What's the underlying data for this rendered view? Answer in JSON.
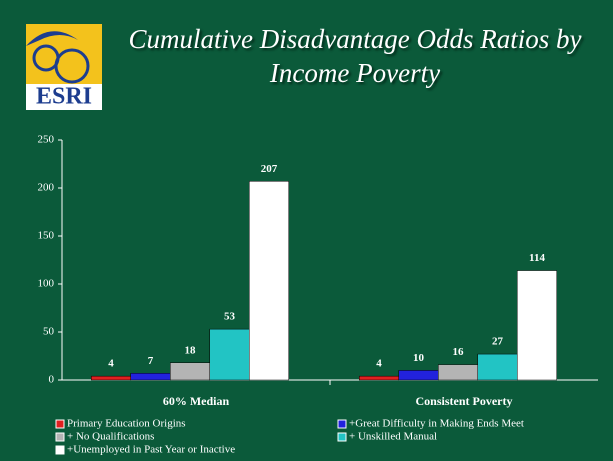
{
  "logo_text": "ESRI",
  "chart_data": {
    "type": "bar",
    "title": "Cumulative Disadvantage Odds Ratios by Income Poverty",
    "categories": [
      "60% Median",
      "Consistent Poverty"
    ],
    "series": [
      {
        "name": "Primary Education Origins",
        "color": "#e02020",
        "values": [
          4,
          4
        ]
      },
      {
        "name": "+Great Difficulty in Making Ends Meet",
        "color": "#2222dd",
        "values": [
          7,
          10
        ]
      },
      {
        "name": "+ No Qualifications",
        "color": "#b4b4b4",
        "values": [
          18,
          16
        ]
      },
      {
        "name": "+ Unskilled Manual",
        "color": "#22c4c4",
        "values": [
          53,
          27
        ]
      },
      {
        "name": "+Unemployed in Past Year or Inactive",
        "color": "#ffffff",
        "values": [
          207,
          114
        ]
      }
    ],
    "ylim": [
      0,
      250
    ],
    "yticks": [
      0,
      50,
      100,
      150,
      200,
      250
    ],
    "grid": false
  }
}
